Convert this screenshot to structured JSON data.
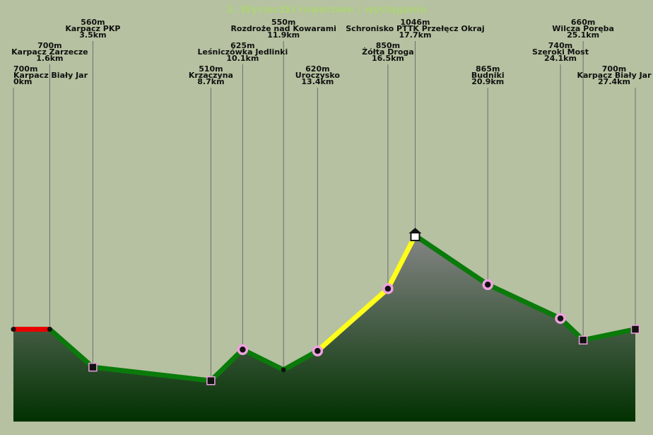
{
  "title": "2. Wycieczki rowerowe | wyciąganie",
  "colors": {
    "background": "#b5c1a0",
    "title": "#aed27a",
    "fill_top": "#858585",
    "fill_bottom": "#013101",
    "stem": "#6e6e6e"
  },
  "chart_data": {
    "type": "area",
    "title": "2. Wycieczki rowerowe | wyciąganie",
    "xlabel": "",
    "ylabel": "",
    "x_unit": "km",
    "y_unit": "m",
    "xlim": [
      0,
      27.4
    ],
    "ylim": [
      300,
      1100
    ],
    "grid": false,
    "points": [
      {
        "name": "Karpacz Biały Jar",
        "elevation": 700,
        "distance": 0,
        "elev_label": "700m",
        "dist_label": "0km",
        "marker": "dot"
      },
      {
        "name": "Karpacz Zarzecze",
        "elevation": 700,
        "distance": 1.6,
        "elev_label": "700m",
        "dist_label": "1.6km",
        "marker": "dot"
      },
      {
        "name": "Karpacz PKP",
        "elevation": 560,
        "distance": 3.5,
        "elev_label": "560m",
        "dist_label": "3.5km",
        "marker": "square"
      },
      {
        "name": "Krzaczyna",
        "elevation": 510,
        "distance": 8.7,
        "elev_label": "510m",
        "dist_label": "8.7km",
        "marker": "square"
      },
      {
        "name": "Leśniczówka Jedlinki",
        "elevation": 625,
        "distance": 10.1,
        "elev_label": "625m",
        "dist_label": "10.1km",
        "marker": "circle"
      },
      {
        "name": "Rozdroże nad Kowarami",
        "elevation": 550,
        "distance": 11.9,
        "elev_label": "550m",
        "dist_label": "11.9km",
        "marker": "dot"
      },
      {
        "name": "Uroczysko",
        "elevation": 620,
        "distance": 13.4,
        "elev_label": "620m",
        "dist_label": "13.4km",
        "marker": "circle"
      },
      {
        "name": "Żółta Droga",
        "elevation": 850,
        "distance": 16.5,
        "elev_label": "850m",
        "dist_label": "16.5km",
        "marker": "circle"
      },
      {
        "name": "Schronisko PTTK Przełęcz Okraj",
        "elevation": 1046,
        "distance": 17.7,
        "elev_label": "1046m",
        "dist_label": "17.7km",
        "marker": "hut"
      },
      {
        "name": "Budniki",
        "elevation": 865,
        "distance": 20.9,
        "elev_label": "865m",
        "dist_label": "20.9km",
        "marker": "circle"
      },
      {
        "name": "Szeroki Most",
        "elevation": 740,
        "distance": 24.1,
        "elev_label": "740m",
        "dist_label": "24.1km",
        "marker": "circle"
      },
      {
        "name": "Wilcza Poręba",
        "elevation": 660,
        "distance": 25.1,
        "elev_label": "660m",
        "dist_label": "25.1km",
        "marker": "square"
      },
      {
        "name": "Karpacz Biały Jar",
        "elevation": 700,
        "distance": 27.4,
        "elev_label": "700m",
        "dist_label": "27.4km",
        "marker": "square"
      }
    ],
    "segments": [
      {
        "from": 0,
        "to": 1,
        "color": "#e80000"
      },
      {
        "from": 1,
        "to": 2,
        "color": "#0a7a0a"
      },
      {
        "from": 2,
        "to": 3,
        "color": "#0a7a0a"
      },
      {
        "from": 3,
        "to": 4,
        "color": "#0a7a0a"
      },
      {
        "from": 4,
        "to": 5,
        "color": "#0a7a0a"
      },
      {
        "from": 5,
        "to": 6,
        "color": "#0a7a0a"
      },
      {
        "from": 6,
        "to": 7,
        "color": "#ffff1a"
      },
      {
        "from": 7,
        "to": 8,
        "color": "#ffff1a"
      },
      {
        "from": 8,
        "to": 9,
        "color": "#0a7a0a"
      },
      {
        "from": 9,
        "to": 10,
        "color": "#0a7a0a"
      },
      {
        "from": 10,
        "to": 11,
        "color": "#0a7a0a"
      },
      {
        "from": 11,
        "to": 12,
        "color": "#0a7a0a"
      }
    ]
  }
}
